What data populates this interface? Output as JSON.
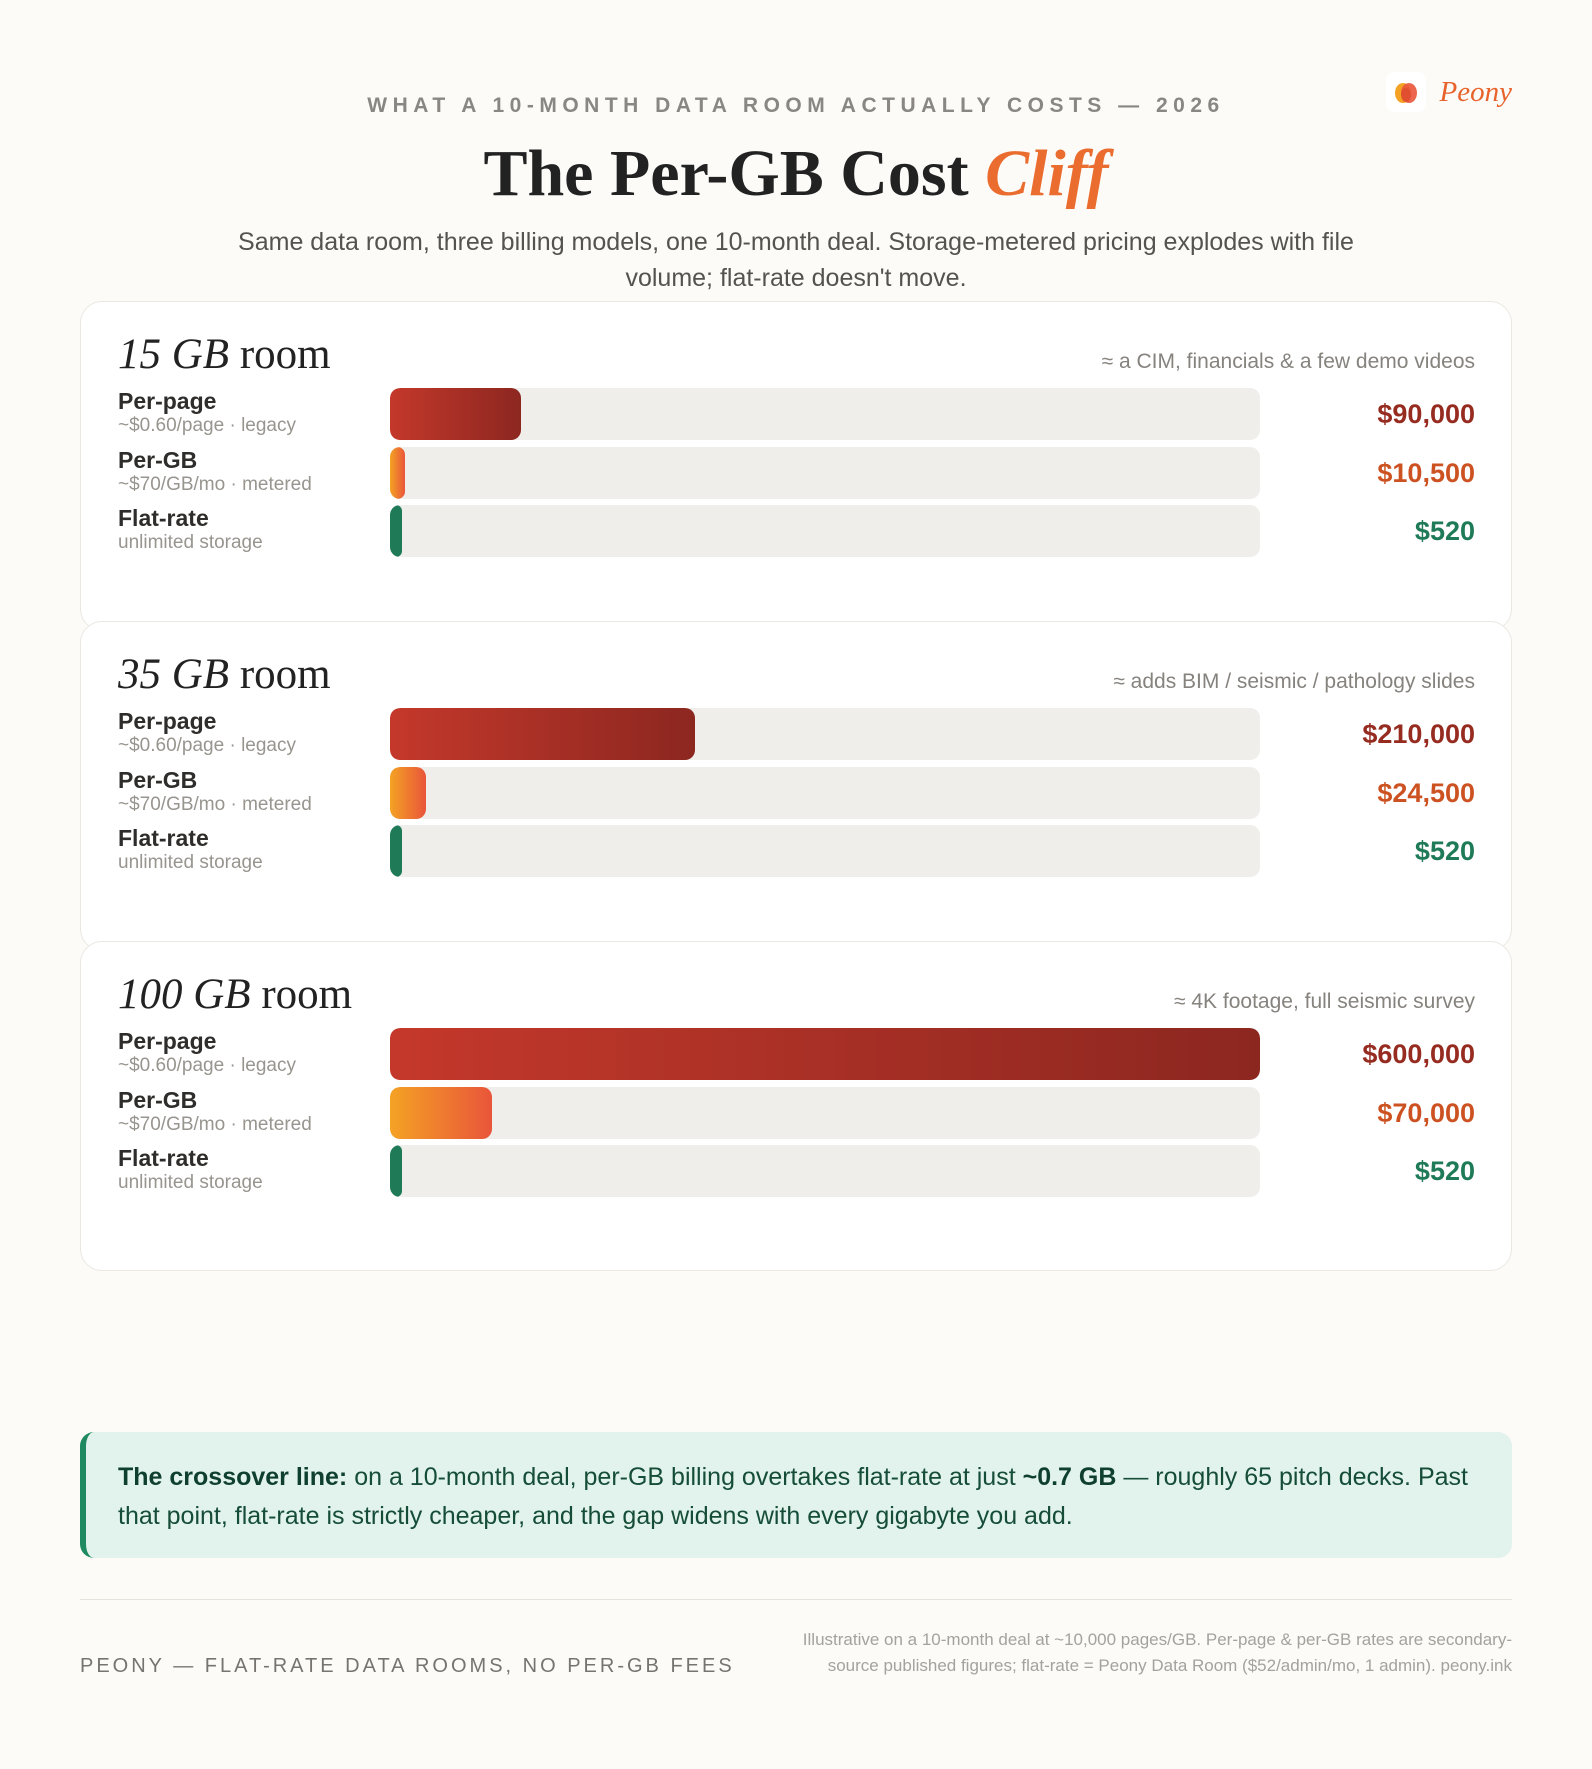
{
  "brand": {
    "name": "Peony",
    "colors": {
      "accent": "#ea6c2e",
      "per_page": "#962b20",
      "per_gb": "#cd5222",
      "flat": "#1e7a57"
    }
  },
  "header": {
    "eyebrow": "WHAT A 10-MONTH DATA ROOM ACTUALLY COSTS — 2026",
    "title_main": "The Per-GB Cost",
    "title_accent": "Cliff",
    "subtitle": "Same data room, three billing models, one 10-month deal. Storage-metered pricing explodes with file volume; flat-rate doesn't move."
  },
  "chart_data": {
    "type": "bar",
    "orientation": "horizontal",
    "max_value": 600000,
    "groups": [
      {
        "size": "15 GB",
        "suffix": "room",
        "note": "≈ a CIM, financials & a few demo videos",
        "bars": [
          {
            "name": "Per-page",
            "sub": "~$0.60/page · legacy",
            "kind": "page",
            "value": 90000,
            "label": "$90,000"
          },
          {
            "name": "Per-GB",
            "sub": "~$70/GB/mo · metered",
            "kind": "gb",
            "value": 10500,
            "label": "$10,500"
          },
          {
            "name": "Flat-rate",
            "sub": "unlimited storage",
            "kind": "flat",
            "value": 520,
            "label": "$520"
          }
        ]
      },
      {
        "size": "35 GB",
        "suffix": "room",
        "note": "≈ adds BIM / seismic / pathology slides",
        "bars": [
          {
            "name": "Per-page",
            "sub": "~$0.60/page · legacy",
            "kind": "page",
            "value": 210000,
            "label": "$210,000"
          },
          {
            "name": "Per-GB",
            "sub": "~$70/GB/mo · metered",
            "kind": "gb",
            "value": 24500,
            "label": "$24,500"
          },
          {
            "name": "Flat-rate",
            "sub": "unlimited storage",
            "kind": "flat",
            "value": 520,
            "label": "$520"
          }
        ]
      },
      {
        "size": "100 GB",
        "suffix": "room",
        "note": "≈ 4K footage, full seismic survey",
        "bars": [
          {
            "name": "Per-page",
            "sub": "~$0.60/page · legacy",
            "kind": "page",
            "value": 600000,
            "label": "$600,000"
          },
          {
            "name": "Per-GB",
            "sub": "~$70/GB/mo · metered",
            "kind": "gb",
            "value": 70000,
            "label": "$70,000"
          },
          {
            "name": "Flat-rate",
            "sub": "unlimited storage",
            "kind": "flat",
            "value": 520,
            "label": "$520"
          }
        ]
      }
    ]
  },
  "callout": {
    "lead": "The crossover line:",
    "text_before": " on a 10-month deal, per-GB billing overtakes flat-rate at just ",
    "highlight": "~0.7 GB",
    "text_after": " — roughly 65 pitch decks. Past that point, flat-rate is strictly cheaper, and the gap widens with every gigabyte you add."
  },
  "footer": {
    "left": "PEONY — FLAT-RATE DATA ROOMS, NO PER-GB FEES",
    "right": "Illustrative on a 10-month deal at ~10,000 pages/GB. Per-page & per-GB rates are secondary-source published figures; flat-rate = Peony Data Room ($52/admin/mo, 1 admin). peony.ink"
  }
}
